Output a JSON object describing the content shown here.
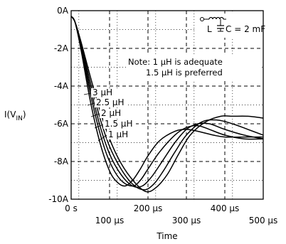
{
  "chart_data": {
    "type": "line",
    "title": "",
    "xlabel": "Time",
    "ylabel": "I(V",
    "ylabel_sub": "IN",
    "ylabel_close": ")",
    "xlim": [
      0,
      500
    ],
    "ylim": [
      -10,
      0
    ],
    "x_ticks": [
      {
        "value": 0,
        "label": "0 s"
      },
      {
        "value": 100,
        "label": "100 μs"
      },
      {
        "value": 200,
        "label": "200 μs"
      },
      {
        "value": 300,
        "label": "300 μs"
      },
      {
        "value": 400,
        "label": "400 μs"
      },
      {
        "value": 500,
        "label": "500 μs"
      }
    ],
    "y_ticks": [
      {
        "value": 0,
        "label": "0A"
      },
      {
        "value": -2,
        "label": "-2A"
      },
      {
        "value": -4,
        "label": "-4A"
      },
      {
        "value": -6,
        "label": "-6A"
      },
      {
        "value": -8,
        "label": "-8A"
      },
      {
        "value": -10,
        "label": "-10A"
      }
    ],
    "grid": true,
    "series": [
      {
        "name": "1 μH",
        "x": [
          0,
          10,
          25,
          50,
          75,
          100,
          120,
          140,
          160,
          180,
          200,
          230,
          270,
          300,
          330,
          370,
          400,
          450,
          500
        ],
        "y": [
          -0.3,
          -0.6,
          -2.0,
          -4.8,
          -7.0,
          -8.5,
          -9.1,
          -9.3,
          -9.0,
          -8.4,
          -7.7,
          -6.9,
          -6.4,
          -6.3,
          -6.4,
          -6.6,
          -6.7,
          -6.7,
          -6.7
        ]
      },
      {
        "name": "1.5 μH",
        "x": [
          0,
          10,
          25,
          50,
          75,
          100,
          130,
          160,
          180,
          200,
          230,
          270,
          300,
          330,
          360,
          400,
          450,
          500
        ],
        "y": [
          -0.3,
          -0.6,
          -1.9,
          -4.4,
          -6.5,
          -8.0,
          -9.0,
          -9.3,
          -9.0,
          -8.4,
          -7.5,
          -6.6,
          -6.2,
          -6.1,
          -6.3,
          -6.6,
          -6.8,
          -6.8
        ]
      },
      {
        "name": "2 μH",
        "x": [
          0,
          10,
          25,
          50,
          75,
          100,
          130,
          160,
          185,
          210,
          240,
          270,
          300,
          330,
          360,
          400,
          450,
          500
        ],
        "y": [
          -0.3,
          -0.6,
          -1.8,
          -4.1,
          -6.1,
          -7.6,
          -8.7,
          -9.3,
          -9.3,
          -8.8,
          -7.9,
          -7.0,
          -6.3,
          -6.0,
          -6.0,
          -6.3,
          -6.6,
          -6.8
        ]
      },
      {
        "name": "2.5 μH",
        "x": [
          0,
          10,
          25,
          50,
          75,
          100,
          130,
          160,
          190,
          215,
          240,
          270,
          300,
          340,
          380,
          420,
          460,
          500
        ],
        "y": [
          -0.3,
          -0.6,
          -1.7,
          -3.8,
          -5.7,
          -7.2,
          -8.4,
          -9.2,
          -9.5,
          -9.2,
          -8.5,
          -7.5,
          -6.6,
          -5.9,
          -5.8,
          -6.0,
          -6.3,
          -6.6
        ]
      },
      {
        "name": "3 μH",
        "x": [
          0,
          10,
          25,
          50,
          75,
          100,
          130,
          165,
          195,
          220,
          250,
          280,
          310,
          350,
          390,
          420,
          460,
          500
        ],
        "y": [
          -0.3,
          -0.6,
          -1.6,
          -3.5,
          -5.3,
          -6.8,
          -8.1,
          -9.1,
          -9.6,
          -9.4,
          -8.7,
          -7.6,
          -6.6,
          -5.9,
          -5.6,
          -5.6,
          -5.6,
          -5.7
        ]
      }
    ],
    "annotations": {
      "note_line1": "Note: 1 μH is adequate",
      "note_line2": "1.5 μH is preferred",
      "inset_L": "L",
      "inset_C": "C = 2 mF"
    }
  }
}
